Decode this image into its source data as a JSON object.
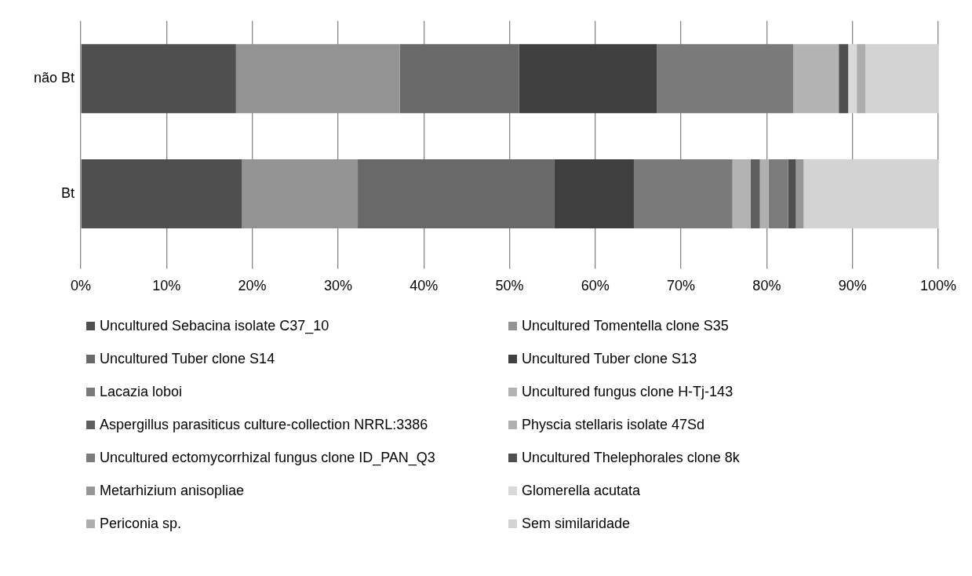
{
  "chart_data": {
    "type": "bar",
    "orientation": "horizontal",
    "stacked": true,
    "categories": [
      "não Bt",
      "Bt"
    ],
    "xlim": [
      0,
      100
    ],
    "xticks": [
      {
        "value": 0,
        "label": "0%"
      },
      {
        "value": 10,
        "label": "10%"
      },
      {
        "value": 20,
        "label": "20%"
      },
      {
        "value": 30,
        "label": "30%"
      },
      {
        "value": 40,
        "label": "40%"
      },
      {
        "value": 50,
        "label": "50%"
      },
      {
        "value": 60,
        "label": "60%"
      },
      {
        "value": 70,
        "label": "70%"
      },
      {
        "value": 80,
        "label": "80%"
      },
      {
        "value": 90,
        "label": "90%"
      },
      {
        "value": 100,
        "label": "100%"
      }
    ],
    "grid": "x",
    "legend": "bottom",
    "series": [
      {
        "name": "Uncultured Sebacina isolate C37_10",
        "color": "#4f4f4f",
        "values": [
          18.1,
          18.8
        ]
      },
      {
        "name": "Uncultured Tomentella clone S35",
        "color": "#939393",
        "values": [
          19.1,
          13.5
        ]
      },
      {
        "name": "Uncultured Tuber clone S14",
        "color": "#696969",
        "values": [
          13.9,
          22.9
        ]
      },
      {
        "name": "Uncultured Tuber clone S13",
        "color": "#3f3f3f",
        "values": [
          16.1,
          9.3
        ]
      },
      {
        "name": "Lacazia loboi",
        "color": "#7a7a7a",
        "values": [
          15.9,
          11.5
        ]
      },
      {
        "name": "Uncultured fungus clone H-Tj-143",
        "color": "#b3b3b3",
        "values": [
          5.3,
          2.1
        ]
      },
      {
        "name": "Aspergillus parasiticus culture-collection NRRL:3386",
        "color": "#5f5f5f",
        "values": [
          0,
          1.1
        ]
      },
      {
        "name": "Physcia stellaris isolate 47Sd",
        "color": "#b0b0b0",
        "values": [
          0,
          1.0
        ]
      },
      {
        "name": "Uncultured ectomycorrhizal fungus clone ID_PAN_Q3",
        "color": "#7c7c7c",
        "values": [
          0,
          2.3
        ]
      },
      {
        "name": "Uncultured Thelephorales clone 8k",
        "color": "#4f4f4f",
        "values": [
          1.1,
          0.9
        ]
      },
      {
        "name": "Metarhizium anisopliae",
        "color": "#969696",
        "values": [
          0,
          0.9
        ]
      },
      {
        "name": "Glomerella acutata",
        "color": "#d9d9d9",
        "values": [
          1.0,
          0
        ]
      },
      {
        "name": "Periconia sp.",
        "color": "#adadad",
        "values": [
          1.0,
          0
        ]
      },
      {
        "name": "Sem similaridade",
        "color": "#d3d3d3",
        "values": [
          8.5,
          15.7
        ]
      }
    ]
  }
}
